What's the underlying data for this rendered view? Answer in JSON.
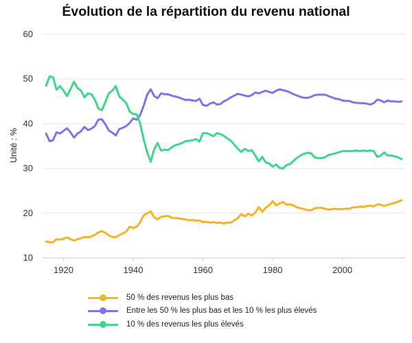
{
  "chart_data": {
    "type": "line",
    "title": "Évolution de la répartition du revenu national",
    "xlabel": "",
    "ylabel": "Unité : %",
    "xlim": [
      1914,
      2018
    ],
    "ylim": [
      10,
      60
    ],
    "x_ticks": [
      1920,
      1940,
      1960,
      1980,
      2000
    ],
    "y_ticks": [
      10,
      20,
      30,
      40,
      50,
      60
    ],
    "grid": "horizontal",
    "legend_position": "bottom",
    "x": [
      1915,
      1916,
      1917,
      1918,
      1919,
      1920,
      1921,
      1922,
      1923,
      1924,
      1925,
      1926,
      1927,
      1928,
      1929,
      1930,
      1931,
      1932,
      1933,
      1934,
      1935,
      1936,
      1937,
      1938,
      1939,
      1940,
      1941,
      1942,
      1943,
      1944,
      1945,
      1946,
      1947,
      1948,
      1949,
      1950,
      1951,
      1952,
      1953,
      1954,
      1955,
      1956,
      1957,
      1958,
      1959,
      1960,
      1961,
      1962,
      1963,
      1964,
      1965,
      1966,
      1967,
      1968,
      1969,
      1970,
      1971,
      1972,
      1973,
      1974,
      1975,
      1976,
      1977,
      1978,
      1979,
      1980,
      1981,
      1982,
      1983,
      1984,
      1985,
      1986,
      1987,
      1988,
      1989,
      1990,
      1991,
      1992,
      1993,
      1994,
      1995,
      1996,
      1997,
      1998,
      1999,
      2000,
      2001,
      2002,
      2003,
      2004,
      2005,
      2006,
      2007,
      2008,
      2009,
      2010,
      2011,
      2012,
      2013,
      2014,
      2015,
      2016,
      2017
    ],
    "series": [
      {
        "name": "50 % des revenus les plus bas",
        "color": "#f7b227",
        "values": [
          13.7,
          13.5,
          13.5,
          14.2,
          14.1,
          14.3,
          14.6,
          14.2,
          13.9,
          14.2,
          14.4,
          14.7,
          14.6,
          14.8,
          15.2,
          15.7,
          16.0,
          15.6,
          15.0,
          14.7,
          14.6,
          15.1,
          15.5,
          15.9,
          17.0,
          16.7,
          17.0,
          18.0,
          19.5,
          20.0,
          20.4,
          19.1,
          18.6,
          19.2,
          19.3,
          19.4,
          19.0,
          18.9,
          18.9,
          18.7,
          18.6,
          18.4,
          18.5,
          18.3,
          18.4,
          18.0,
          18.1,
          17.9,
          18.0,
          17.8,
          17.9,
          17.7,
          17.9,
          17.9,
          18.4,
          18.9,
          19.8,
          19.3,
          19.9,
          19.5,
          20.1,
          21.4,
          20.3,
          21.2,
          21.8,
          22.7,
          21.7,
          22.2,
          22.5,
          21.9,
          22.0,
          21.7,
          21.3,
          21.1,
          20.9,
          20.7,
          20.6,
          21.1,
          21.2,
          21.2,
          21.0,
          20.8,
          20.9,
          21.0,
          20.9,
          20.9,
          21.0,
          21.0,
          21.3,
          21.3,
          21.5,
          21.4,
          21.6,
          21.7,
          21.5,
          22.0,
          21.9,
          21.6,
          21.9,
          22.1,
          22.3,
          22.6,
          22.9
        ]
      },
      {
        "name": "Entre les 50 % les plus bas et les 10 % les plus élevés",
        "color": "#7b76e8",
        "values": [
          37.8,
          36.1,
          36.3,
          38.1,
          37.8,
          38.4,
          39.0,
          38.1,
          36.9,
          37.8,
          38.3,
          39.3,
          38.6,
          38.9,
          39.5,
          40.9,
          41.0,
          39.9,
          38.5,
          38.0,
          37.4,
          38.8,
          39.1,
          39.5,
          40.2,
          41.2,
          40.9,
          42.0,
          44.0,
          46.5,
          47.7,
          46.2,
          45.7,
          46.8,
          46.6,
          46.6,
          46.3,
          46.1,
          45.9,
          45.6,
          45.3,
          45.4,
          45.2,
          45.1,
          45.6,
          44.2,
          44.0,
          44.5,
          44.8,
          44.3,
          44.4,
          45.0,
          45.4,
          45.9,
          46.3,
          46.7,
          46.5,
          46.3,
          46.1,
          46.4,
          47.0,
          46.8,
          47.1,
          47.4,
          47.1,
          46.9,
          47.4,
          47.7,
          47.5,
          47.3,
          47.0,
          46.6,
          46.3,
          46.0,
          45.8,
          45.8,
          46.0,
          46.4,
          46.5,
          46.5,
          46.5,
          46.2,
          45.9,
          45.6,
          45.5,
          45.2,
          45.1,
          45.1,
          44.8,
          44.7,
          44.6,
          44.6,
          44.5,
          44.3,
          44.6,
          45.4,
          45.2,
          44.8,
          45.2,
          45.0,
          45.0,
          44.9,
          45.0
        ]
      },
      {
        "name": "10 % des revenus les plus élevés",
        "color": "#3dd68c",
        "values": [
          48.5,
          50.6,
          50.4,
          47.6,
          48.4,
          47.4,
          46.2,
          47.7,
          49.4,
          48.0,
          47.4,
          45.9,
          46.8,
          46.6,
          45.4,
          43.4,
          43.0,
          44.9,
          46.8,
          47.4,
          48.4,
          46.1,
          45.4,
          44.6,
          42.7,
          42.2,
          42.1,
          40.0,
          36.5,
          33.6,
          31.5,
          34.3,
          35.7,
          34.0,
          34.2,
          34.1,
          34.7,
          35.2,
          35.4,
          35.7,
          36.1,
          36.2,
          36.3,
          36.6,
          36.0,
          37.9,
          37.9,
          37.6,
          37.2,
          37.9,
          37.7,
          37.3,
          36.7,
          36.2,
          35.3,
          34.4,
          33.7,
          34.4,
          33.9,
          34.1,
          32.9,
          31.6,
          32.6,
          31.4,
          31.1,
          30.4,
          30.9,
          30.1,
          30.0,
          30.8,
          31.0,
          31.7,
          32.4,
          32.9,
          33.3,
          33.5,
          33.4,
          32.5,
          32.3,
          32.3,
          32.5,
          33.0,
          33.2,
          33.4,
          33.6,
          33.9,
          33.9,
          33.9,
          33.9,
          34.0,
          33.9,
          34.0,
          33.9,
          34.0,
          33.9,
          32.6,
          32.9,
          33.6,
          32.9,
          32.9,
          32.7,
          32.5,
          32.1
        ]
      }
    ]
  }
}
